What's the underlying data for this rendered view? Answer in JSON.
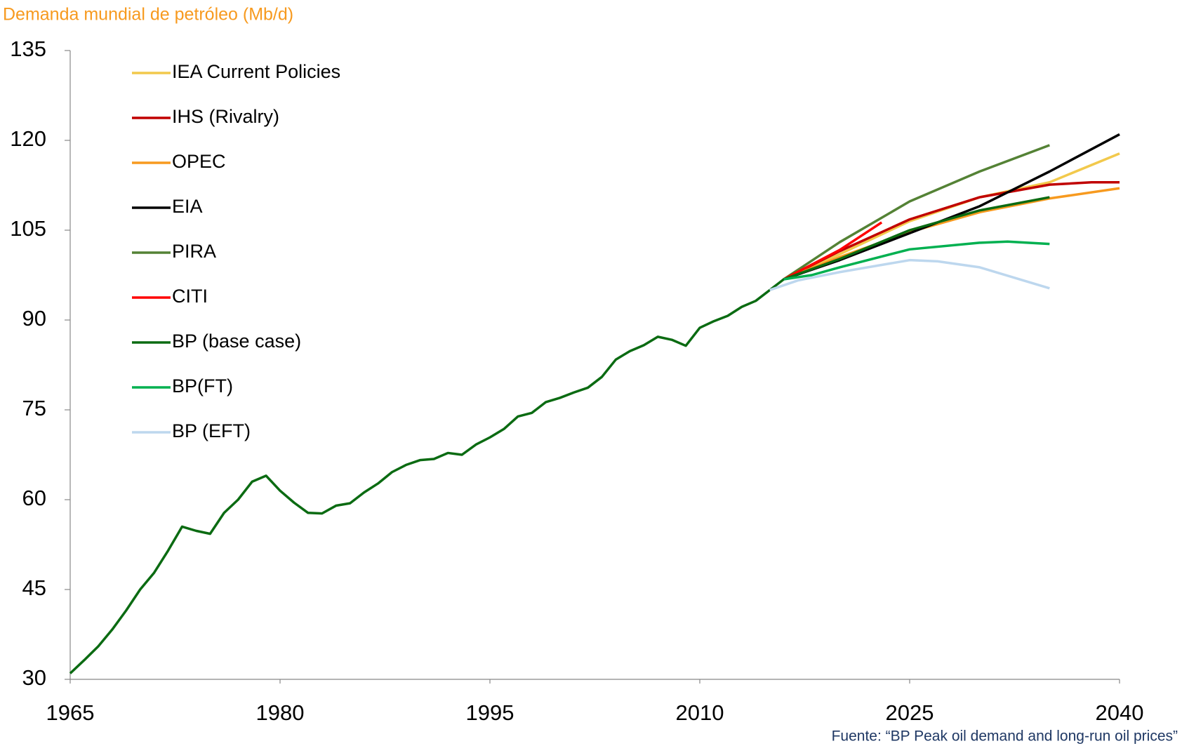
{
  "chart_data": {
    "type": "line",
    "title": "Demanda mundial de petróleo (Mb/d)",
    "source": "Fuente: “BP Peak oil demand and long-run oil prices”",
    "xlim": [
      1965,
      2040
    ],
    "xticks": [
      1965,
      1980,
      1995,
      2010,
      2025,
      2040
    ],
    "ylim": [
      30,
      135
    ],
    "yticks": [
      30,
      45,
      60,
      75,
      90,
      105,
      120,
      135
    ],
    "legend": "upper left",
    "series": [
      {
        "name": "IEA Current Policies",
        "color": "#f2c94c",
        "x": [
          2016,
          2020,
          2025,
          2030,
          2035,
          2040
        ],
        "values": [
          96.8,
          101,
          106.5,
          110.5,
          113,
          117.8
        ]
      },
      {
        "name": "IHS (Rivalry)",
        "color": "#c00000",
        "x": [
          2016,
          2020,
          2025,
          2030,
          2035,
          2038,
          2040
        ],
        "values": [
          96.8,
          101.5,
          106.8,
          110.5,
          112.6,
          113,
          113
        ]
      },
      {
        "name": "OPEC",
        "color": "#f79a1f",
        "x": [
          2016,
          2020,
          2025,
          2030,
          2035,
          2040
        ],
        "values": [
          96.8,
          100.5,
          104.7,
          108,
          110.3,
          112
        ]
      },
      {
        "name": "EIA",
        "color": "#000000",
        "x": [
          2016,
          2020,
          2025,
          2030,
          2035,
          2040
        ],
        "values": [
          96.8,
          100,
          104.5,
          109,
          114.8,
          121
        ]
      },
      {
        "name": "PIRA",
        "color": "#548235",
        "x": [
          2016,
          2020,
          2025,
          2030,
          2035
        ],
        "values": [
          96.8,
          103,
          109.8,
          114.8,
          119.2
        ]
      },
      {
        "name": "CITI",
        "color": "#ff0000",
        "x": [
          2016,
          2020,
          2023
        ],
        "values": [
          96.8,
          101.7,
          106.3
        ]
      },
      {
        "name": "BP (base case)",
        "color": "#0b6b12",
        "x": [
          1965,
          1966,
          1967,
          1968,
          1969,
          1970,
          1971,
          1972,
          1973,
          1974,
          1975,
          1976,
          1977,
          1978,
          1979,
          1980,
          1981,
          1982,
          1983,
          1984,
          1985,
          1986,
          1987,
          1988,
          1989,
          1990,
          1991,
          1992,
          1993,
          1994,
          1995,
          1996,
          1997,
          1998,
          1999,
          2000,
          2001,
          2002,
          2003,
          2004,
          2005,
          2006,
          2007,
          2008,
          2009,
          2010,
          2011,
          2012,
          2013,
          2014,
          2015,
          2016,
          2020,
          2025,
          2030,
          2035
        ],
        "values": [
          31,
          33.2,
          35.5,
          38.3,
          41.5,
          45,
          47.8,
          51.5,
          55.5,
          54.8,
          54.3,
          57.8,
          60,
          63,
          64,
          61.5,
          59.5,
          57.8,
          57.7,
          59,
          59.4,
          61.2,
          62.7,
          64.6,
          65.8,
          66.6,
          66.8,
          67.8,
          67.5,
          69.2,
          70.4,
          71.8,
          73.9,
          74.5,
          76.3,
          77,
          77.9,
          78.7,
          80.5,
          83.4,
          84.8,
          85.8,
          87.2,
          86.7,
          85.7,
          88.7,
          89.8,
          90.7,
          92.2,
          93.2,
          95,
          96.8,
          100.2,
          105,
          108.3,
          110.5
        ]
      },
      {
        "name": "BP(FT)",
        "color": "#00b050",
        "x": [
          2016,
          2018,
          2020,
          2025,
          2030,
          2032,
          2035
        ],
        "values": [
          96.8,
          97.5,
          98.8,
          101.8,
          102.9,
          103.1,
          102.7
        ]
      },
      {
        "name": "BP (EFT)",
        "color": "#bdd7ee",
        "x": [
          2015,
          2017,
          2020,
          2025,
          2027,
          2030,
          2035
        ],
        "values": [
          95,
          96.6,
          98,
          100,
          99.8,
          98.8,
          95.3
        ]
      }
    ]
  }
}
